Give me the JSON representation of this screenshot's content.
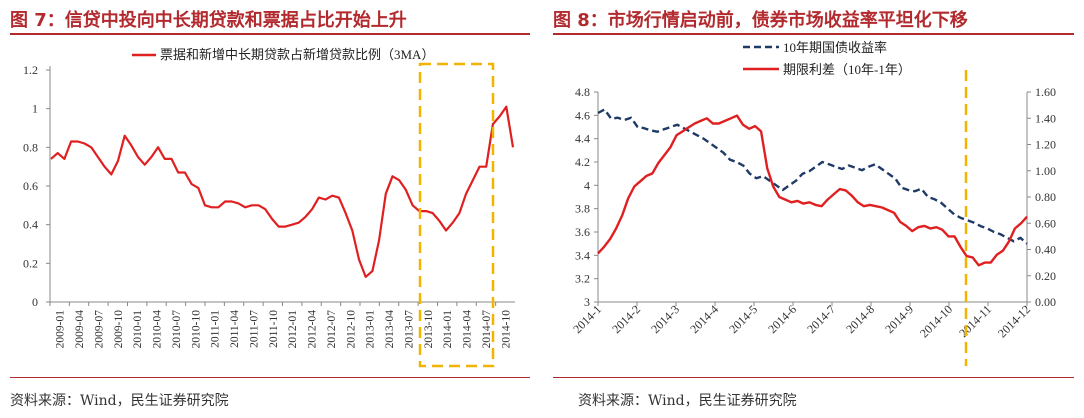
{
  "source_text": "资料来源：Wind，民生证券研究院",
  "chart_data": [
    {
      "type": "line",
      "title": "图 7：信贷中投向中长期贷款和票据占比开始上升",
      "x_tick_labels": [
        "2009-01",
        "2009-04",
        "2009-07",
        "2009-10",
        "2010-01",
        "2010-04",
        "2010-07",
        "2010-10",
        "2011-01",
        "2011-04",
        "2011-07",
        "2011-10",
        "2012-01",
        "2012-04",
        "2012-07",
        "2012-10",
        "2013-01",
        "2013-04",
        "2013-07",
        "2013-10",
        "2014-01",
        "2014-04",
        "2014-07",
        "2014-10"
      ],
      "ylim": [
        0,
        1.2
      ],
      "yticks": [
        "0",
        "0.2",
        "0.4",
        "0.6",
        "0.8",
        "1",
        "1.2"
      ],
      "legend": "top-right",
      "highlight": "dashed box 2013-10 to 2014-10",
      "highlight_color": "#f2b400",
      "series": [
        {
          "name": "票据和新增中长期贷款占新增贷款比例（3MA）",
          "color": "#e02020",
          "values": [
            0.74,
            0.77,
            0.74,
            0.83,
            0.83,
            0.82,
            0.8,
            0.75,
            0.7,
            0.66,
            0.73,
            0.86,
            0.81,
            0.75,
            0.71,
            0.75,
            0.8,
            0.74,
            0.74,
            0.67,
            0.67,
            0.61,
            0.59,
            0.5,
            0.49,
            0.49,
            0.52,
            0.52,
            0.51,
            0.49,
            0.5,
            0.5,
            0.48,
            0.43,
            0.39,
            0.39,
            0.4,
            0.41,
            0.44,
            0.48,
            0.54,
            0.53,
            0.55,
            0.54,
            0.46,
            0.37,
            0.22,
            0.13,
            0.16,
            0.32,
            0.56,
            0.65,
            0.63,
            0.58,
            0.5,
            0.47,
            0.47,
            0.46,
            0.42,
            0.37,
            0.41,
            0.46,
            0.56,
            0.63,
            0.7,
            0.7,
            0.92,
            0.96,
            1.01,
            0.8
          ]
        }
      ]
    },
    {
      "type": "line",
      "title": "图 8：市场行情启动前，债券市场收益率平坦化下移",
      "x_tick_labels": [
        "2014-1",
        "2014-2",
        "2014-3",
        "2014-4",
        "2014-5",
        "2014-6",
        "2014-7",
        "2014-8",
        "2014-9",
        "2014-10",
        "2014-11",
        "2014-12"
      ],
      "ylim_left": [
        3,
        4.8
      ],
      "yticks_left": [
        "3",
        "3.2",
        "3.4",
        "3.6",
        "3.8",
        "4",
        "4.2",
        "4.4",
        "4.6",
        "4.8"
      ],
      "ylim_right": [
        0,
        1.6
      ],
      "yticks_right": [
        "0.00",
        "0.20",
        "0.40",
        "0.60",
        "0.80",
        "1.00",
        "1.20",
        "1.40",
        "1.60"
      ],
      "legend": "top-left",
      "highlight": "vertical dashed line near 2014-11",
      "highlight_color": "#f2b400",
      "series": [
        {
          "name": "10年期国债收益率",
          "axis": "left",
          "style": "dashed",
          "color": "#1f3a66",
          "values": [
            4.62,
            4.65,
            4.57,
            4.58,
            4.56,
            4.58,
            4.5,
            4.49,
            4.47,
            4.46,
            4.48,
            4.5,
            4.52,
            4.49,
            4.46,
            4.43,
            4.4,
            4.36,
            4.32,
            4.28,
            4.22,
            4.2,
            4.17,
            4.1,
            4.06,
            4.08,
            4.04,
            4.0,
            3.96,
            4.0,
            4.04,
            4.1,
            4.12,
            4.16,
            4.2,
            4.18,
            4.16,
            4.14,
            4.17,
            4.15,
            4.13,
            4.16,
            4.18,
            4.14,
            4.1,
            4.06,
            3.98,
            3.96,
            3.95,
            3.97,
            3.9,
            3.88,
            3.85,
            3.8,
            3.75,
            3.72,
            3.7,
            3.68,
            3.65,
            3.63,
            3.6,
            3.58,
            3.55,
            3.52,
            3.55,
            3.5
          ]
        },
        {
          "name": "期限利差（10年-1年）",
          "axis": "right",
          "style": "solid",
          "color": "#e02020",
          "values": [
            0.37,
            0.42,
            0.48,
            0.56,
            0.66,
            0.79,
            0.88,
            0.92,
            0.96,
            0.98,
            1.06,
            1.12,
            1.18,
            1.27,
            1.3,
            1.33,
            1.36,
            1.38,
            1.4,
            1.36,
            1.36,
            1.38,
            1.4,
            1.42,
            1.35,
            1.32,
            1.34,
            1.3,
            1.02,
            0.88,
            0.8,
            0.78,
            0.76,
            0.77,
            0.75,
            0.76,
            0.74,
            0.73,
            0.78,
            0.82,
            0.86,
            0.85,
            0.81,
            0.76,
            0.73,
            0.74,
            0.73,
            0.72,
            0.7,
            0.68,
            0.61,
            0.58,
            0.54,
            0.57,
            0.58,
            0.56,
            0.57,
            0.55,
            0.5,
            0.5,
            0.42,
            0.35,
            0.34,
            0.28,
            0.3,
            0.3,
            0.36,
            0.39,
            0.46,
            0.56,
            0.6,
            0.65
          ]
        }
      ]
    }
  ]
}
